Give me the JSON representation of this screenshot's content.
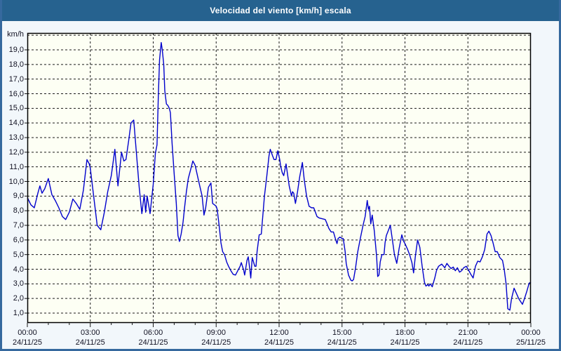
{
  "title": "Velocidad del viento [km/h] escala",
  "colors": {
    "titlebar_bg": "#26628f",
    "titlebar_text": "#ffffff",
    "frame_border": "#36699e",
    "body_bg": "#f2f7fb",
    "plot_bg": "#fdfff4",
    "plot_border": "#000000",
    "grid": "#1a1a1a",
    "line": "#0000cc",
    "tick_text": "#111122"
  },
  "chart_data": {
    "type": "line",
    "title": "Velocidad del viento [km/h] escala",
    "ylabel": "km/h",
    "xlabel": "",
    "ylim": [
      0,
      20
    ],
    "xlim_hours": [
      0,
      24
    ],
    "grid": "dashed",
    "legend_position": "none",
    "y_tick_labels": [
      "19,0",
      "18,0",
      "17,0",
      "16,0",
      "15,0",
      "14,0",
      "13,0",
      "12,0",
      "11,0",
      "10,0",
      "9,0",
      "8,0",
      "7,0",
      "6,0",
      "5,0",
      "4,0",
      "3,0",
      "2,0",
      "1,0"
    ],
    "y_tick_values": [
      19,
      18,
      17,
      16,
      15,
      14,
      13,
      12,
      11,
      10,
      9,
      8,
      7,
      6,
      5,
      4,
      3,
      2,
      1
    ],
    "x_ticks": [
      {
        "t": 0,
        "time": "00:00",
        "date": "24/11/25"
      },
      {
        "t": 3,
        "time": "03:00",
        "date": "24/11/25"
      },
      {
        "t": 6,
        "time": "06:00",
        "date": "24/11/25"
      },
      {
        "t": 9,
        "time": "09:00",
        "date": "24/11/25"
      },
      {
        "t": 12,
        "time": "12:00",
        "date": "24/11/25"
      },
      {
        "t": 15,
        "time": "15:00",
        "date": "24/11/25"
      },
      {
        "t": 18,
        "time": "18:00",
        "date": "24/11/25"
      },
      {
        "t": 21,
        "time": "21:00",
        "date": "24/11/25"
      },
      {
        "t": 24,
        "time": "00:00",
        "date": "25/11/25"
      }
    ],
    "series": [
      {
        "name": "Velocidad del viento [km/h]",
        "color": "#0000cc",
        "points": [
          [
            0.0,
            8.9
          ],
          [
            0.17,
            8.4
          ],
          [
            0.33,
            8.2
          ],
          [
            0.5,
            9.2
          ],
          [
            0.6,
            9.7
          ],
          [
            0.7,
            9.2
          ],
          [
            0.83,
            9.5
          ],
          [
            1.0,
            10.2
          ],
          [
            1.17,
            9.1
          ],
          [
            1.33,
            8.7
          ],
          [
            1.5,
            8.2
          ],
          [
            1.67,
            7.6
          ],
          [
            1.83,
            7.4
          ],
          [
            2.0,
            7.9
          ],
          [
            2.17,
            8.8
          ],
          [
            2.33,
            8.5
          ],
          [
            2.5,
            8.1
          ],
          [
            2.67,
            9.4
          ],
          [
            2.84,
            11.5
          ],
          [
            2.95,
            11.2
          ],
          [
            3.0,
            10.9
          ],
          [
            3.17,
            8.9
          ],
          [
            3.33,
            7.0
          ],
          [
            3.5,
            6.7
          ],
          [
            3.67,
            7.9
          ],
          [
            3.83,
            9.3
          ],
          [
            4.0,
            10.4
          ],
          [
            4.17,
            12.2
          ],
          [
            4.32,
            9.7
          ],
          [
            4.49,
            12.0
          ],
          [
            4.6,
            11.4
          ],
          [
            4.7,
            11.5
          ],
          [
            4.83,
            12.8
          ],
          [
            4.94,
            14.0
          ],
          [
            5.07,
            14.2
          ],
          [
            5.2,
            11.9
          ],
          [
            5.33,
            9.6
          ],
          [
            5.46,
            7.8
          ],
          [
            5.57,
            9.1
          ],
          [
            5.64,
            7.9
          ],
          [
            5.71,
            9.0
          ],
          [
            5.85,
            7.8
          ],
          [
            6.0,
            9.8
          ],
          [
            6.1,
            11.9
          ],
          [
            6.18,
            12.5
          ],
          [
            6.24,
            15.7
          ],
          [
            6.3,
            18.3
          ],
          [
            6.38,
            19.5
          ],
          [
            6.43,
            19.0
          ],
          [
            6.5,
            18.0
          ],
          [
            6.55,
            16.2
          ],
          [
            6.63,
            15.3
          ],
          [
            6.7,
            15.2
          ],
          [
            6.77,
            15.0
          ],
          [
            6.82,
            14.7
          ],
          [
            6.9,
            12.6
          ],
          [
            7.0,
            10.5
          ],
          [
            7.1,
            8.5
          ],
          [
            7.18,
            6.3
          ],
          [
            7.25,
            5.9
          ],
          [
            7.33,
            6.4
          ],
          [
            7.42,
            7.2
          ],
          [
            7.5,
            8.3
          ],
          [
            7.58,
            9.3
          ],
          [
            7.67,
            10.2
          ],
          [
            7.78,
            10.8
          ],
          [
            7.89,
            11.4
          ],
          [
            8.0,
            11.1
          ],
          [
            8.17,
            10.0
          ],
          [
            8.33,
            9.0
          ],
          [
            8.42,
            7.7
          ],
          [
            8.5,
            8.2
          ],
          [
            8.63,
            9.6
          ],
          [
            8.75,
            9.9
          ],
          [
            8.83,
            8.5
          ],
          [
            8.92,
            8.4
          ],
          [
            9.0,
            8.3
          ],
          [
            9.05,
            8.1
          ],
          [
            9.15,
            6.9
          ],
          [
            9.23,
            5.8
          ],
          [
            9.31,
            5.2
          ],
          [
            9.4,
            5.0
          ],
          [
            9.5,
            4.5
          ],
          [
            9.59,
            4.2
          ],
          [
            9.7,
            3.9
          ],
          [
            9.81,
            3.65
          ],
          [
            9.92,
            3.6
          ],
          [
            10.03,
            3.9
          ],
          [
            10.14,
            4.2
          ],
          [
            10.2,
            4.45
          ],
          [
            10.31,
            3.95
          ],
          [
            10.36,
            3.6
          ],
          [
            10.47,
            4.6
          ],
          [
            10.53,
            4.85
          ],
          [
            10.6,
            4.05
          ],
          [
            10.65,
            3.4
          ],
          [
            10.72,
            4.8
          ],
          [
            10.84,
            4.2
          ],
          [
            10.9,
            4.2
          ],
          [
            10.95,
            5.2
          ],
          [
            11.05,
            6.35
          ],
          [
            11.15,
            6.4
          ],
          [
            11.3,
            9.0
          ],
          [
            11.41,
            10.3
          ],
          [
            11.52,
            11.75
          ],
          [
            11.58,
            12.2
          ],
          [
            11.69,
            11.75
          ],
          [
            11.76,
            11.5
          ],
          [
            11.85,
            11.5
          ],
          [
            11.94,
            12.1
          ],
          [
            12.03,
            11.5
          ],
          [
            12.08,
            11.0
          ],
          [
            12.15,
            10.6
          ],
          [
            12.22,
            10.4
          ],
          [
            12.33,
            11.2
          ],
          [
            12.48,
            9.7
          ],
          [
            12.59,
            9.0
          ],
          [
            12.64,
            9.3
          ],
          [
            12.7,
            9.2
          ],
          [
            12.78,
            8.5
          ],
          [
            12.88,
            9.3
          ],
          [
            12.98,
            10.3
          ],
          [
            13.11,
            11.3
          ],
          [
            13.2,
            10.1
          ],
          [
            13.31,
            9.0
          ],
          [
            13.43,
            8.3
          ],
          [
            13.55,
            8.2
          ],
          [
            13.65,
            8.2
          ],
          [
            13.81,
            7.6
          ],
          [
            13.92,
            7.5
          ],
          [
            14.05,
            7.45
          ],
          [
            14.2,
            7.4
          ],
          [
            14.26,
            7.2
          ],
          [
            14.37,
            6.8
          ],
          [
            14.48,
            6.55
          ],
          [
            14.59,
            6.55
          ],
          [
            14.7,
            6.0
          ],
          [
            14.76,
            5.75
          ],
          [
            14.81,
            6.1
          ],
          [
            14.9,
            6.2
          ],
          [
            15.0,
            6.1
          ],
          [
            15.06,
            6.1
          ],
          [
            15.15,
            5.2
          ],
          [
            15.2,
            4.4
          ],
          [
            15.31,
            3.6
          ],
          [
            15.42,
            3.25
          ],
          [
            15.48,
            3.2
          ],
          [
            15.55,
            3.3
          ],
          [
            15.64,
            4.05
          ],
          [
            15.75,
            5.2
          ],
          [
            15.87,
            6.1
          ],
          [
            16.0,
            7.0
          ],
          [
            16.1,
            7.6
          ],
          [
            16.2,
            8.7
          ],
          [
            16.26,
            8.1
          ],
          [
            16.31,
            8.3
          ],
          [
            16.37,
            7.1
          ],
          [
            16.44,
            7.7
          ],
          [
            16.54,
            6.6
          ],
          [
            16.65,
            4.85
          ],
          [
            16.7,
            3.5
          ],
          [
            16.76,
            3.6
          ],
          [
            16.82,
            4.5
          ],
          [
            16.9,
            5.0
          ],
          [
            17.0,
            5.0
          ],
          [
            17.05,
            5.8
          ],
          [
            17.11,
            6.3
          ],
          [
            17.22,
            6.7
          ],
          [
            17.3,
            7.0
          ],
          [
            17.39,
            6.1
          ],
          [
            17.5,
            5.0
          ],
          [
            17.61,
            4.4
          ],
          [
            17.72,
            5.4
          ],
          [
            17.85,
            6.35
          ],
          [
            17.94,
            5.9
          ],
          [
            18.0,
            5.75
          ],
          [
            18.11,
            5.4
          ],
          [
            18.22,
            5.0
          ],
          [
            18.33,
            4.45
          ],
          [
            18.41,
            3.75
          ],
          [
            18.49,
            4.85
          ],
          [
            18.6,
            6.0
          ],
          [
            18.71,
            5.5
          ],
          [
            18.82,
            4.2
          ],
          [
            18.93,
            3.1
          ],
          [
            19.0,
            2.85
          ],
          [
            19.09,
            2.95
          ],
          [
            19.14,
            2.85
          ],
          [
            19.2,
            3.0
          ],
          [
            19.3,
            2.8
          ],
          [
            19.42,
            3.4
          ],
          [
            19.5,
            3.9
          ],
          [
            19.6,
            4.2
          ],
          [
            19.75,
            4.35
          ],
          [
            19.9,
            4.1
          ],
          [
            20.0,
            4.4
          ],
          [
            20.1,
            4.2
          ],
          [
            20.2,
            4.05
          ],
          [
            20.3,
            4.15
          ],
          [
            20.4,
            3.9
          ],
          [
            20.5,
            4.1
          ],
          [
            20.6,
            3.8
          ],
          [
            20.7,
            3.9
          ],
          [
            20.8,
            4.1
          ],
          [
            20.92,
            4.2
          ],
          [
            21.03,
            3.95
          ],
          [
            21.14,
            3.65
          ],
          [
            21.25,
            3.4
          ],
          [
            21.36,
            4.2
          ],
          [
            21.47,
            4.55
          ],
          [
            21.58,
            4.5
          ],
          [
            21.69,
            4.85
          ],
          [
            21.8,
            5.35
          ],
          [
            21.91,
            6.4
          ],
          [
            22.0,
            6.6
          ],
          [
            22.1,
            6.3
          ],
          [
            22.2,
            5.8
          ],
          [
            22.3,
            5.2
          ],
          [
            22.4,
            5.2
          ],
          [
            22.52,
            4.8
          ],
          [
            22.65,
            4.6
          ],
          [
            22.73,
            4.0
          ],
          [
            22.82,
            3.0
          ],
          [
            22.9,
            1.3
          ],
          [
            23.0,
            1.2
          ],
          [
            23.08,
            2.0
          ],
          [
            23.2,
            2.7
          ],
          [
            23.31,
            2.35
          ],
          [
            23.42,
            2.0
          ],
          [
            23.6,
            1.6
          ],
          [
            23.7,
            2.0
          ],
          [
            23.81,
            2.5
          ],
          [
            23.92,
            3.05
          ],
          [
            24.0,
            3.1
          ]
        ]
      }
    ]
  }
}
